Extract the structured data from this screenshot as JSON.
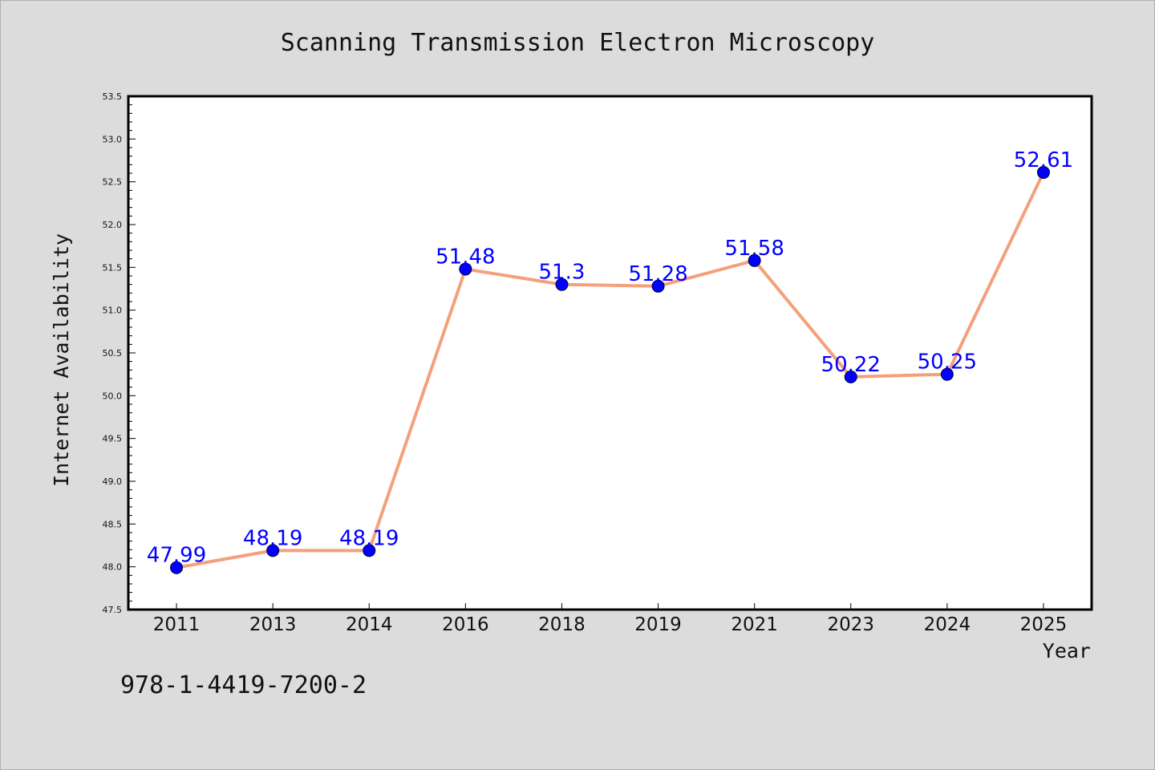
{
  "chart_data": {
    "type": "line",
    "title": "Scanning Transmission Electron Microscopy",
    "xlabel": "Year",
    "ylabel": "Internet Availability",
    "categories": [
      "2011",
      "2013",
      "2014",
      "2016",
      "2018",
      "2019",
      "2021",
      "2023",
      "2024",
      "2025"
    ],
    "series": [
      {
        "values": [
          47.99,
          48.19,
          48.19,
          51.48,
          51.3,
          51.28,
          51.58,
          50.22,
          50.25,
          52.61
        ],
        "labels": [
          "47.99",
          "48.19",
          "48.19",
          "51.48",
          "51.3",
          "51.28",
          "51.58",
          "50.22",
          "50.25",
          "52.61"
        ],
        "line_color": "#f4a07c",
        "marker_color": "#0000ff"
      }
    ],
    "ylim": [
      47.5,
      53.5
    ],
    "yticks": [
      "47.5",
      "48.0",
      "48.5",
      "49.0",
      "49.5",
      "50.0",
      "50.5",
      "51.0",
      "51.5",
      "52.0",
      "52.5",
      "53.0",
      "53.5"
    ],
    "grid": false,
    "background_color": "#dcdcdc",
    "plot_background": "#ffffff"
  },
  "footer": {
    "isbn": "978-1-4419-7200-2"
  }
}
